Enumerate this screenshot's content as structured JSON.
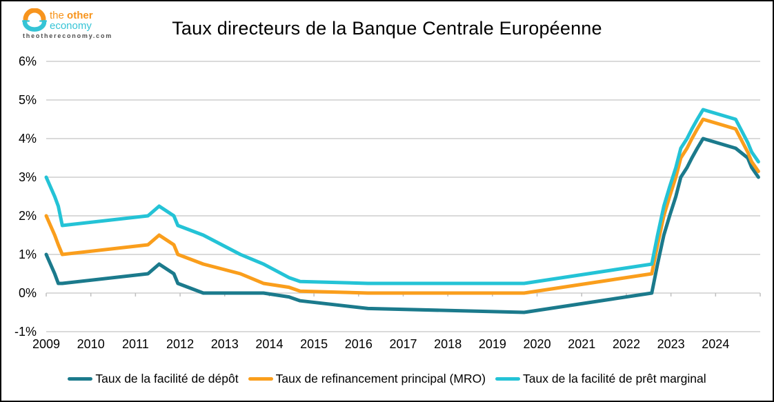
{
  "branding": {
    "name_part1": "the",
    "name_part2": "other",
    "name_part3": "economy",
    "website": "theothereconomy.com",
    "colors": {
      "orange": "#F7941D",
      "cyan": "#35C4D6",
      "gray": "#4D4D4D"
    }
  },
  "title": "Taux directeurs de la Banque Centrale Européenne",
  "chart_data": {
    "type": "line",
    "title": "Taux directeurs de la Banque Centrale Européenne",
    "x_unit": "year_decimal",
    "x": [
      2009.0,
      2009.19,
      2009.27,
      2009.36,
      2011.28,
      2011.53,
      2011.86,
      2011.95,
      2012.52,
      2013.35,
      2013.87,
      2014.44,
      2014.69,
      2016.21,
      2019.71,
      2022.57,
      2022.7,
      2022.84,
      2022.97,
      2023.11,
      2023.22,
      2023.36,
      2023.47,
      2023.59,
      2023.72,
      2024.45,
      2024.72,
      2024.81,
      2024.96
    ],
    "series": [
      {
        "id": "deposit-facility",
        "name": "Taux de la facilité de dépôt",
        "color": "#1B7A8C",
        "values": [
          1.0,
          0.5,
          0.25,
          0.25,
          0.5,
          0.75,
          0.5,
          0.25,
          0.0,
          0.0,
          0.0,
          -0.1,
          -0.2,
          -0.4,
          -0.5,
          0.0,
          0.75,
          1.5,
          2.0,
          2.5,
          3.0,
          3.25,
          3.5,
          3.75,
          4.0,
          3.75,
          3.5,
          3.25,
          3.0
        ]
      },
      {
        "id": "mro",
        "name": "Taux de refinancement principal (MRO)",
        "color": "#FA9E1C",
        "values": [
          2.0,
          1.5,
          1.25,
          1.0,
          1.25,
          1.5,
          1.25,
          1.0,
          0.75,
          0.5,
          0.25,
          0.15,
          0.05,
          0.0,
          0.0,
          0.5,
          1.25,
          2.0,
          2.5,
          3.0,
          3.5,
          3.75,
          4.0,
          4.25,
          4.5,
          4.25,
          3.65,
          3.4,
          3.15
        ]
      },
      {
        "id": "marginal-lending",
        "name": "Taux de la facilité de prêt marginal",
        "color": "#24C3D6",
        "values": [
          3.0,
          2.5,
          2.25,
          1.75,
          2.0,
          2.25,
          2.0,
          1.75,
          1.5,
          1.0,
          0.75,
          0.4,
          0.3,
          0.25,
          0.25,
          0.75,
          1.5,
          2.25,
          2.75,
          3.25,
          3.75,
          4.0,
          4.25,
          4.5,
          4.75,
          4.5,
          3.9,
          3.65,
          3.4
        ]
      }
    ],
    "xlim": [
      2009,
      2025
    ],
    "ylim": [
      -1,
      6
    ],
    "y_tick_values": [
      6,
      5,
      4,
      3,
      2,
      1,
      0,
      -1
    ],
    "y_tick_labels": [
      "6%",
      "5%",
      "4%",
      "3%",
      "2%",
      "1%",
      "0%",
      "-1%"
    ],
    "x_tick_labels": [
      "2009",
      "2010",
      "2011",
      "2012",
      "2013",
      "2014",
      "2015",
      "2016",
      "2017",
      "2018",
      "2019",
      "2020",
      "2021",
      "2022",
      "2023",
      "2024"
    ],
    "grid": true,
    "gridline_color": "#DADADA",
    "axis_tick_color": "#BFBFBF",
    "legend_position": "bottom"
  }
}
